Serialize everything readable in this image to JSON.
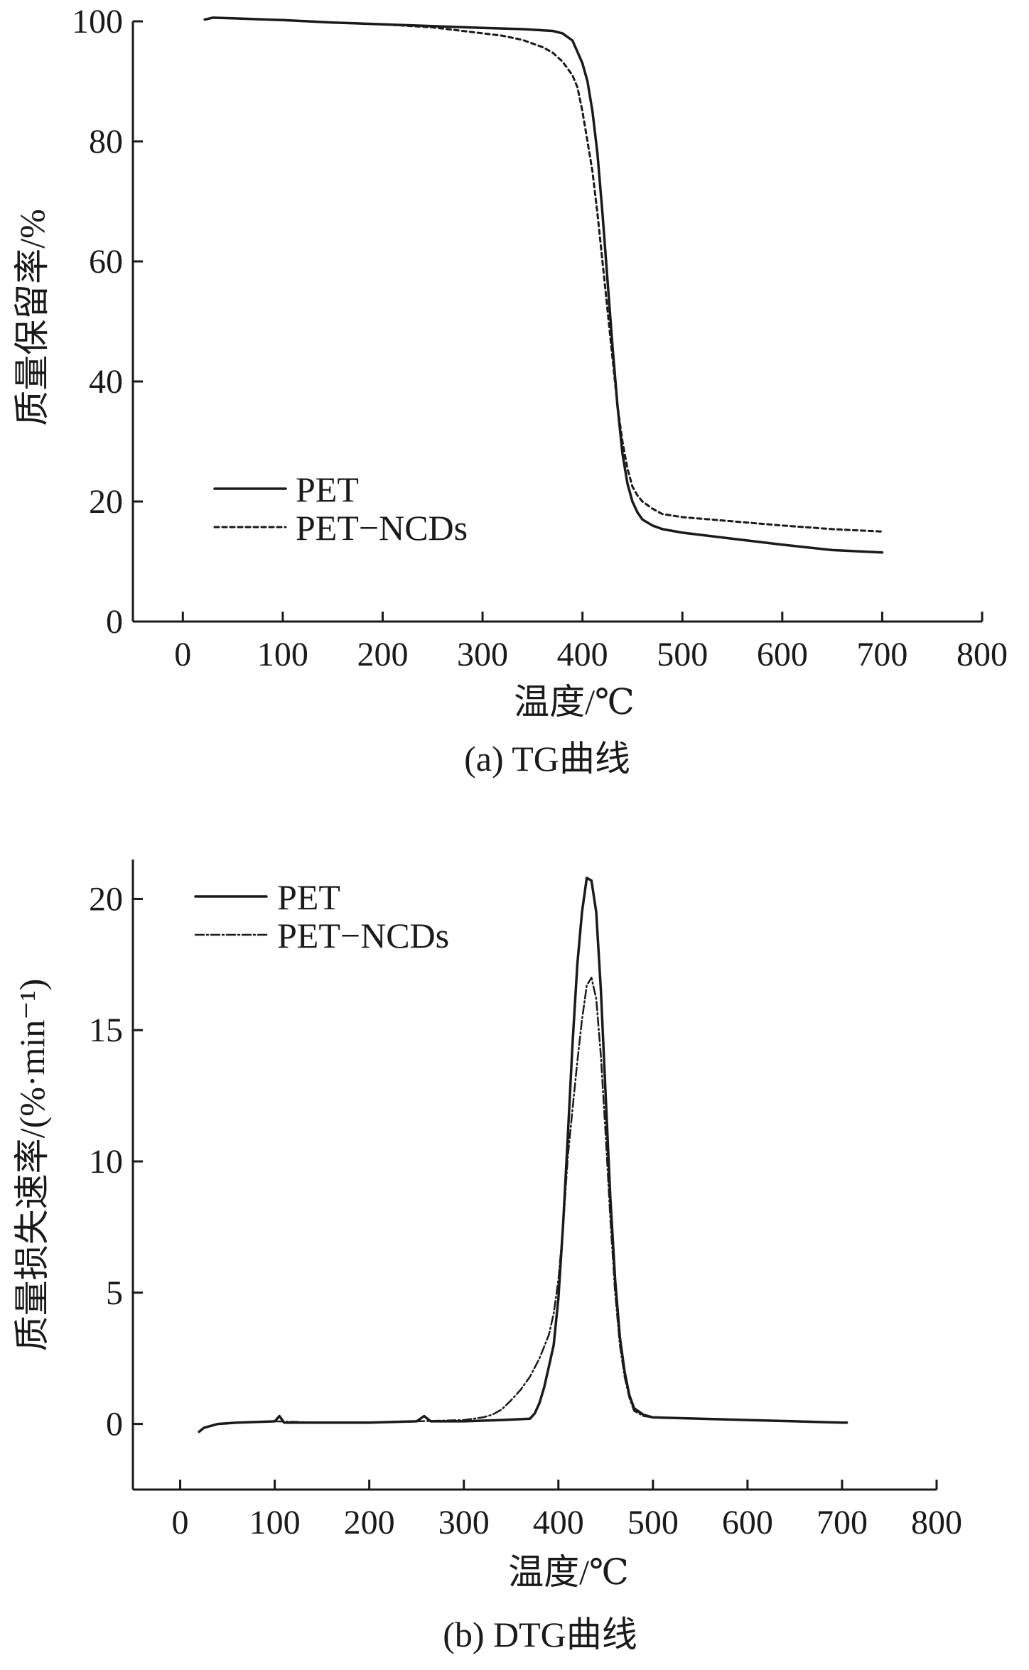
{
  "chart_data": [
    {
      "type": "line",
      "caption": "(a) TG曲线",
      "title": "",
      "xlabel": "温度/℃",
      "ylabel": "质量保留率/%",
      "xlim": [
        -50,
        800
      ],
      "ylim": [
        0,
        100
      ],
      "xticks": [
        0,
        100,
        200,
        300,
        400,
        500,
        600,
        700,
        800
      ],
      "yticks": [
        0,
        20,
        40,
        60,
        80,
        100
      ],
      "legend_position": "lower-left",
      "series": [
        {
          "name": "PET",
          "style": "solid",
          "x": [
            22,
            30,
            50,
            100,
            150,
            200,
            250,
            300,
            340,
            370,
            380,
            390,
            400,
            405,
            410,
            415,
            420,
            425,
            430,
            435,
            440,
            445,
            450,
            455,
            460,
            470,
            480,
            500,
            550,
            600,
            650,
            700
          ],
          "y": [
            100.3,
            100.6,
            100.5,
            100.2,
            99.8,
            99.5,
            99.2,
            98.9,
            98.7,
            98.4,
            98.0,
            96.8,
            93.0,
            90.0,
            85.0,
            78.0,
            68.0,
            57.0,
            46.0,
            36.0,
            28.0,
            23.0,
            20.0,
            18.2,
            17.0,
            16.0,
            15.4,
            14.8,
            13.8,
            12.8,
            11.9,
            11.5
          ]
        },
        {
          "name": "PET−NCDs",
          "style": "dashed",
          "x": [
            22,
            30,
            50,
            100,
            150,
            200,
            250,
            300,
            320,
            340,
            360,
            370,
            380,
            390,
            395,
            400,
            405,
            410,
            415,
            420,
            425,
            430,
            435,
            440,
            445,
            450,
            455,
            460,
            470,
            480,
            500,
            550,
            600,
            650,
            700
          ],
          "y": [
            100.3,
            100.6,
            100.5,
            100.2,
            99.8,
            99.5,
            99.0,
            98.0,
            97.6,
            96.9,
            95.7,
            94.8,
            93.3,
            91.0,
            89.0,
            85.0,
            80.0,
            75.0,
            68.0,
            60.0,
            52.0,
            44.0,
            36.0,
            30.0,
            25.5,
            22.5,
            21.0,
            20.0,
            18.8,
            17.9,
            17.4,
            16.7,
            16.0,
            15.4,
            15.0
          ]
        }
      ]
    },
    {
      "type": "line",
      "caption": "(b) DTG曲线",
      "title": "",
      "xlabel": "温度/℃",
      "ylabel": "质量损失速率/(%·min⁻¹)",
      "xlim": [
        -50,
        800
      ],
      "ylim": [
        -2.5,
        21.5
      ],
      "xticks": [
        0,
        100,
        200,
        300,
        400,
        500,
        600,
        700,
        800
      ],
      "yticks": [
        0,
        5,
        10,
        15,
        20
      ],
      "legend_position": "top-left",
      "series": [
        {
          "name": "PET",
          "style": "solid",
          "x": [
            20,
            25,
            40,
            60,
            100,
            105,
            110,
            150,
            200,
            250,
            258,
            265,
            300,
            340,
            370,
            375,
            380,
            385,
            390,
            395,
            400,
            405,
            410,
            415,
            420,
            425,
            430,
            435,
            440,
            445,
            450,
            455,
            460,
            465,
            470,
            475,
            480,
            490,
            500,
            550,
            600,
            650,
            700,
            705
          ],
          "y": [
            -0.3,
            -0.15,
            0.0,
            0.05,
            0.1,
            0.3,
            0.05,
            0.05,
            0.05,
            0.1,
            0.3,
            0.1,
            0.1,
            0.15,
            0.2,
            0.4,
            0.8,
            1.4,
            2.2,
            3.0,
            4.8,
            7.6,
            11.0,
            14.5,
            17.5,
            19.5,
            20.8,
            20.7,
            19.5,
            16.5,
            12.5,
            8.6,
            5.5,
            3.3,
            2.0,
            1.1,
            0.6,
            0.35,
            0.25,
            0.2,
            0.15,
            0.1,
            0.05,
            0.05
          ]
        },
        {
          "name": "PET−NCDs",
          "style": "dashdot",
          "x": [
            20,
            25,
            40,
            60,
            100,
            150,
            200,
            250,
            300,
            320,
            330,
            340,
            350,
            360,
            370,
            380,
            390,
            395,
            400,
            405,
            410,
            415,
            420,
            425,
            430,
            435,
            440,
            445,
            450,
            455,
            460,
            465,
            470,
            475,
            480,
            490,
            500,
            550,
            600,
            650,
            700,
            705
          ],
          "y": [
            -0.3,
            -0.15,
            0.0,
            0.05,
            0.1,
            0.05,
            0.05,
            0.1,
            0.15,
            0.25,
            0.35,
            0.55,
            0.9,
            1.3,
            1.8,
            2.5,
            3.4,
            4.2,
            5.5,
            7.5,
            10.2,
            12.0,
            13.8,
            15.4,
            16.7,
            17.0,
            16.2,
            14.0,
            11.0,
            7.8,
            5.0,
            3.0,
            1.8,
            1.0,
            0.5,
            0.3,
            0.25,
            0.2,
            0.15,
            0.1,
            0.05,
            0.05
          ]
        }
      ]
    }
  ]
}
